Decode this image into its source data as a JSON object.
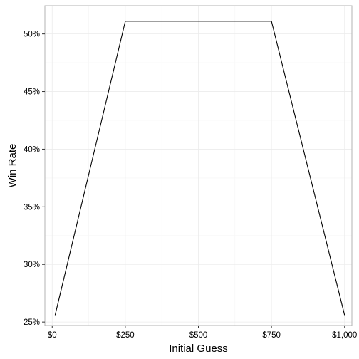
{
  "chart_data": {
    "type": "line",
    "title": "",
    "xlabel": "Initial Guess",
    "ylabel": "Win Rate",
    "x": [
      10,
      250,
      500,
      750,
      1000
    ],
    "series": [
      {
        "values": [
          25.6,
          51.1,
          51.1,
          51.1,
          25.6
        ]
      }
    ],
    "xlim": [
      -25,
      1025
    ],
    "ylim": [
      24.7,
      52.45
    ],
    "x_ticks": [
      0,
      250,
      500,
      750,
      1000
    ],
    "x_tick_labels": [
      "$0",
      "$250",
      "$500",
      "$750",
      "$1,000"
    ],
    "y_ticks": [
      25,
      30,
      35,
      40,
      45,
      50
    ],
    "y_tick_labels": [
      "25%",
      "30%",
      "35%",
      "40%",
      "45%",
      "50%"
    ],
    "grid": true,
    "legend": "none",
    "colors": {
      "line": "#000000",
      "grid_major": "#ebebeb",
      "grid_minor": "#f5f5f5",
      "panel_border": "#b3b3b3"
    }
  }
}
